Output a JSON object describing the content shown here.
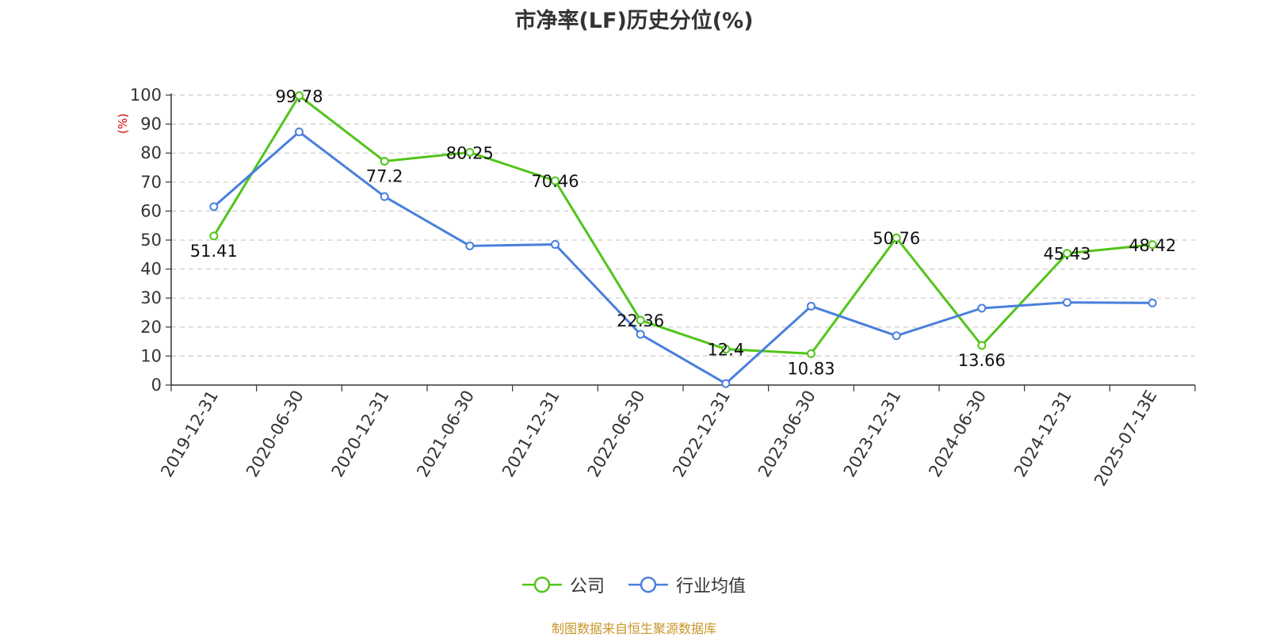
{
  "chart_data": {
    "type": "line",
    "title": "市净率(LF)历史分位(%)",
    "ylabel": "(%)",
    "ylim": [
      0,
      100
    ],
    "yticks": [
      0,
      10,
      20,
      30,
      40,
      50,
      60,
      70,
      80,
      90,
      100
    ],
    "grid": true,
    "legend_position": "bottom-center",
    "categories": [
      "2019-12-31",
      "2020-06-30",
      "2020-12-31",
      "2021-06-30",
      "2021-12-31",
      "2022-06-30",
      "2022-12-31",
      "2023-06-30",
      "2023-12-31",
      "2024-06-30",
      "2024-12-31",
      "2025-07-13E"
    ],
    "series": [
      {
        "name": "公司",
        "color": "#52c41a",
        "show_labels": true,
        "values": [
          51.41,
          99.78,
          77.2,
          80.25,
          70.46,
          22.36,
          12.4,
          10.83,
          50.76,
          13.66,
          45.43,
          48.42
        ]
      },
      {
        "name": "行业均值",
        "color": "#4a7fdc",
        "show_labels": false,
        "values": [
          61.5,
          87.3,
          65,
          48,
          48.5,
          17.5,
          0.5,
          27.2,
          17,
          26.5,
          28.5,
          28.3
        ]
      }
    ]
  },
  "source": "制图数据来自恒生聚源数据库"
}
